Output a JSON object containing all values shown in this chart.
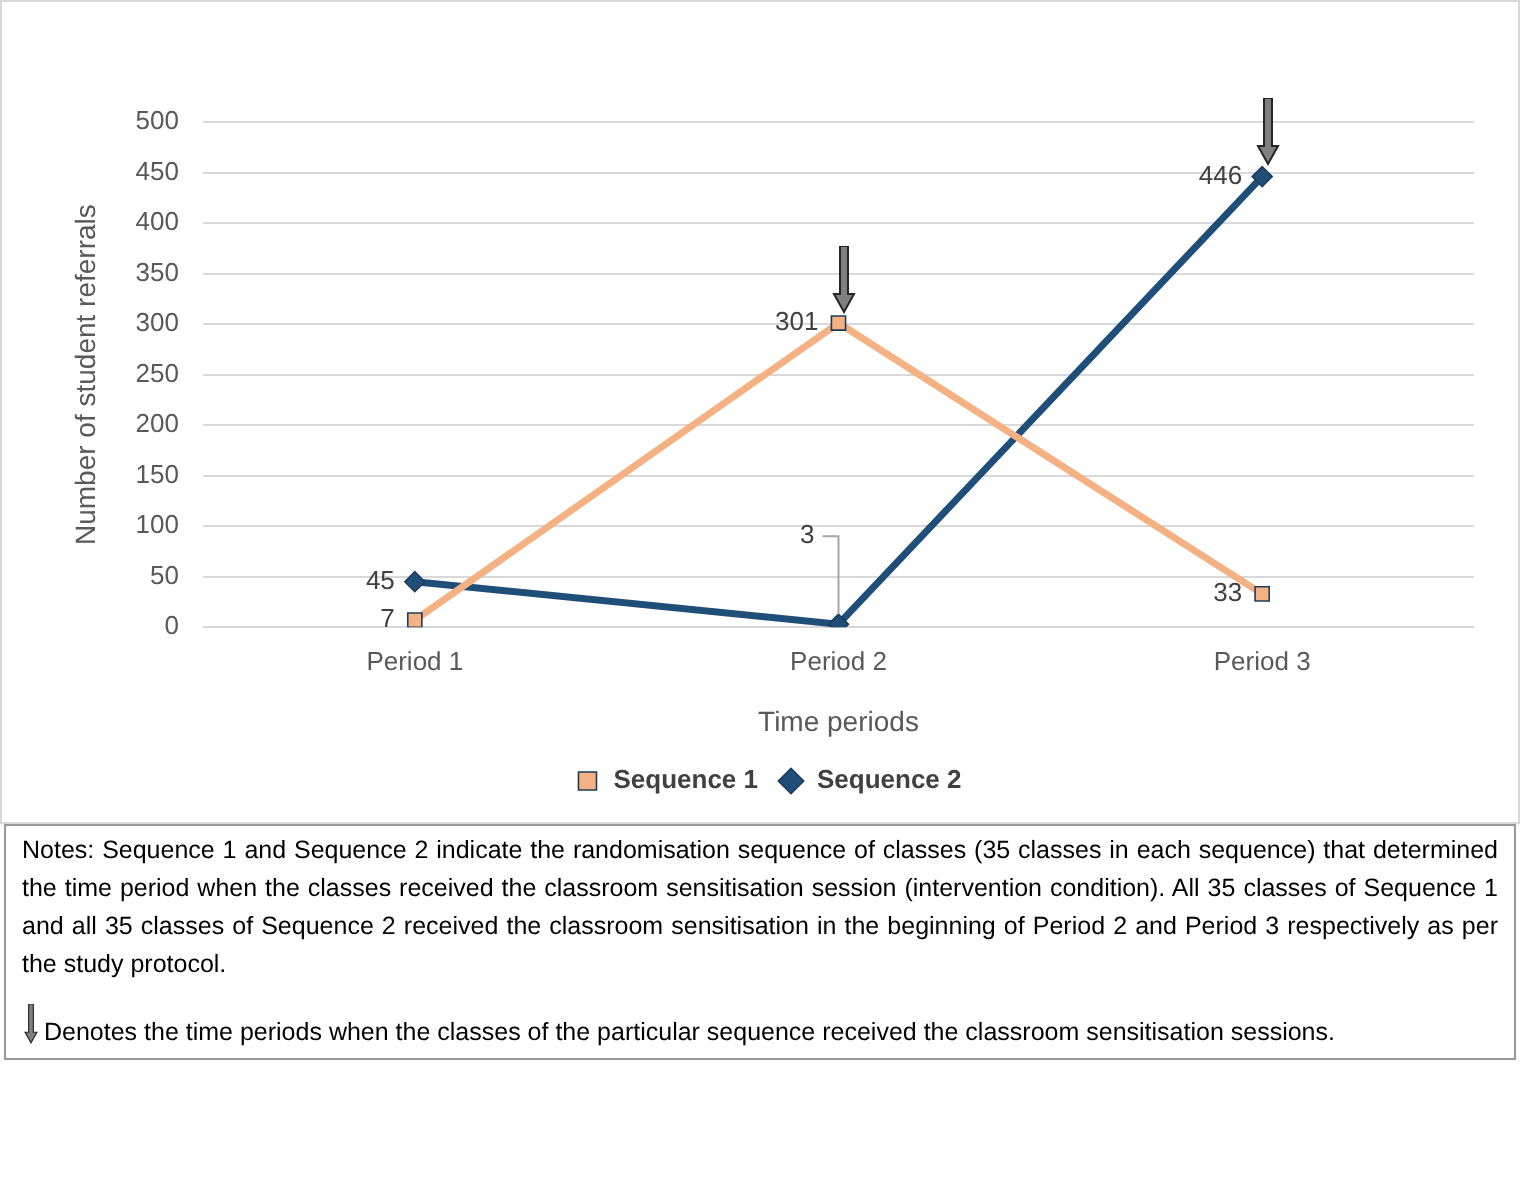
{
  "chart_data": {
    "type": "line",
    "xlabel": "Time periods",
    "ylabel": "Number of student referrals",
    "categories": [
      "Period 1",
      "Period 2",
      "Period 3"
    ],
    "series": [
      {
        "name": "Sequence 1",
        "color": "#f4b183",
        "marker": "square",
        "values": [
          7,
          301,
          33
        ]
      },
      {
        "name": "Sequence 2",
        "color": "#1f4e79",
        "marker": "diamond",
        "values": [
          45,
          3,
          446
        ]
      }
    ],
    "ylim": [
      0,
      500
    ],
    "yticks": [
      0,
      50,
      100,
      150,
      200,
      250,
      300,
      350,
      400,
      450,
      500
    ],
    "grid": "y",
    "legend": "bottom",
    "data_labels": true,
    "annotations": [
      "Notes: Sequence 1 and Sequence 2 indicate the randomisation sequence of classes (35 classes in each sequence) that determined the time period when the classes received the classroom sensitisation session (intervention condition). All 35 classes of Sequence 1 and all 35 classes of Sequence 2 received the classroom sensitisation in the beginning of Period 2 and Period 3 respectively as per the study protocol.",
      "Denotes the time periods when the classes of the particular sequence received the classroom sensitisation sessions."
    ]
  }
}
